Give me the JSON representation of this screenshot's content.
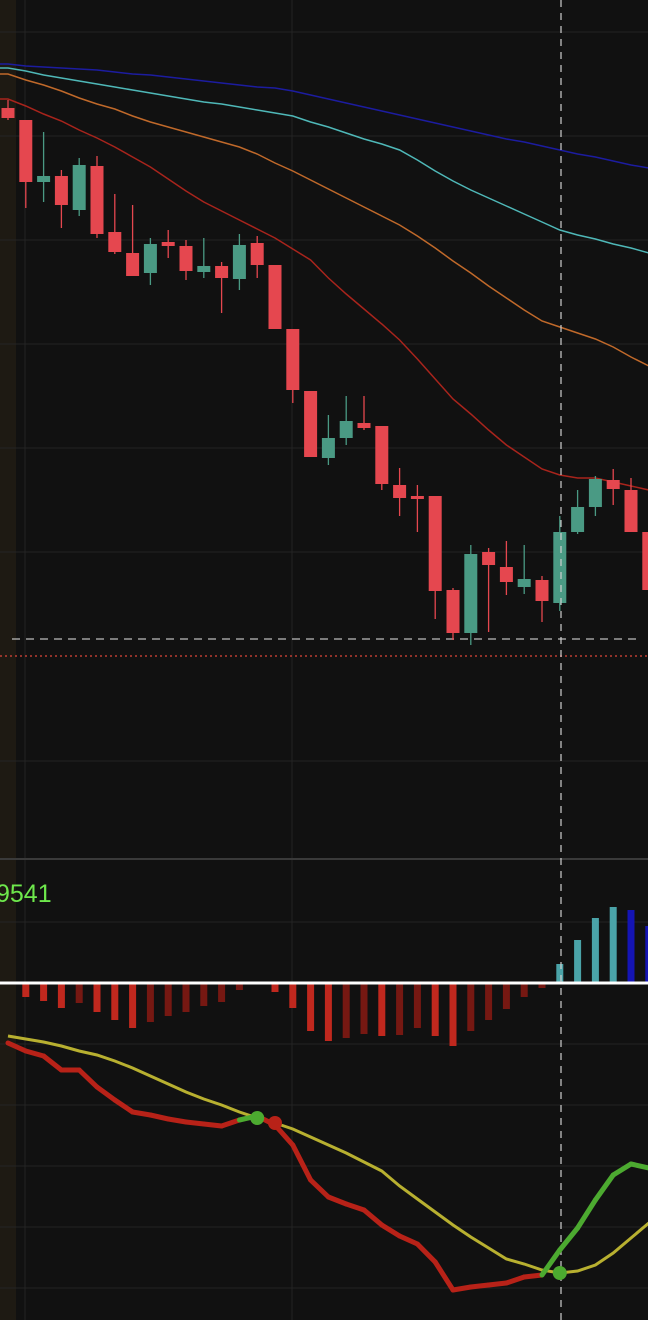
{
  "chart_data": [
    {
      "type": "candlestick",
      "ylim": [
        0,
        86
      ],
      "up_color": "#4a9a84",
      "down_color": "#e5474f",
      "open": [
        75.2,
        74.0,
        67.8,
        68.4,
        65.0,
        69.4,
        62.8,
        60.7,
        58.7,
        61.8,
        61.4,
        58.8,
        59.4,
        58.1,
        61.7,
        59.5,
        53.1,
        46.9,
        40.2,
        42.2,
        43.7,
        43.4,
        37.5,
        36.4,
        36.4,
        27.0,
        22.7,
        30.8,
        29.3,
        27.3,
        28.0,
        25.7,
        32.8,
        35.3,
        38.0,
        37.0,
        32.8
      ],
      "high": [
        76.0,
        74.0,
        72.8,
        69.0,
        70.2,
        70.4,
        66.6,
        65.5,
        62.2,
        63.0,
        62.0,
        62.2,
        59.8,
        62.6,
        62.4,
        59.5,
        53.1,
        46.9,
        44.5,
        46.4,
        46.4,
        43.4,
        39.2,
        37.5,
        36.4,
        27.2,
        31.5,
        31.2,
        31.9,
        31.5,
        28.4,
        34.4,
        37.0,
        38.4,
        39.1,
        38.2,
        32.8
      ],
      "low": [
        74.0,
        65.2,
        65.8,
        63.2,
        64.4,
        62.2,
        60.6,
        58.4,
        57.5,
        60.2,
        58.0,
        58.2,
        54.7,
        57.0,
        58.2,
        53.1,
        45.7,
        40.3,
        39.5,
        41.5,
        43.0,
        37.0,
        34.4,
        32.8,
        24.1,
        22.0,
        21.5,
        22.8,
        26.5,
        26.6,
        23.8,
        24.9,
        32.6,
        34.4,
        35.5,
        32.8,
        27.0
      ],
      "close": [
        74.2,
        67.8,
        68.4,
        65.5,
        69.5,
        62.6,
        60.8,
        58.4,
        61.6,
        61.4,
        58.9,
        59.4,
        58.2,
        61.5,
        59.5,
        53.1,
        47.0,
        40.3,
        42.2,
        43.9,
        43.2,
        37.6,
        36.2,
        36.1,
        26.9,
        22.7,
        30.6,
        29.5,
        27.8,
        28.1,
        25.9,
        32.8,
        35.3,
        38.1,
        37.1,
        32.8,
        27.0
      ],
      "moving_averages": [
        {
          "color": "#1c1ca0",
          "values": [
            79.6,
            79.4,
            79.3,
            79.2,
            79.1,
            79.0,
            78.8,
            78.6,
            78.5,
            78.3,
            78.1,
            77.9,
            77.7,
            77.5,
            77.3,
            77.2,
            76.9,
            76.5,
            76.1,
            75.7,
            75.3,
            74.9,
            74.5,
            74.1,
            73.7,
            73.3,
            72.9,
            72.5,
            72.1,
            71.8,
            71.4,
            71.0,
            70.6,
            70.3,
            69.9,
            69.5,
            69.2
          ]
        },
        {
          "color": "#4fb8b8",
          "values": [
            79.2,
            78.9,
            78.5,
            78.2,
            77.9,
            77.6,
            77.3,
            77.0,
            76.7,
            76.4,
            76.1,
            75.8,
            75.6,
            75.3,
            75.0,
            74.7,
            74.4,
            73.8,
            73.3,
            72.7,
            72.1,
            71.6,
            71.0,
            70.0,
            68.9,
            67.9,
            67.0,
            66.2,
            65.4,
            64.6,
            63.8,
            63.0,
            62.5,
            62.1,
            61.6,
            61.2,
            60.7
          ]
        },
        {
          "color": "#c0692a",
          "values": [
            78.6,
            78.0,
            77.5,
            76.9,
            76.2,
            75.6,
            75.1,
            74.4,
            73.8,
            73.3,
            72.8,
            72.3,
            71.8,
            71.3,
            70.6,
            69.7,
            68.9,
            68.0,
            67.1,
            66.2,
            65.3,
            64.4,
            63.5,
            62.4,
            61.2,
            59.9,
            58.7,
            57.4,
            56.2,
            55.0,
            53.9,
            53.3,
            52.7,
            52.1,
            51.3,
            50.3,
            49.4
          ]
        },
        {
          "color": "#a8241c",
          "values": [
            76.1,
            75.4,
            74.6,
            73.9,
            73.0,
            72.2,
            71.3,
            70.3,
            69.3,
            68.1,
            66.9,
            65.8,
            64.9,
            64.0,
            63.1,
            62.2,
            61.1,
            60.0,
            58.2,
            56.6,
            55.1,
            53.6,
            52.0,
            50.1,
            48.1,
            46.1,
            44.6,
            43.0,
            41.5,
            40.3,
            39.1,
            38.5,
            38.2,
            38.2,
            37.8,
            37.4,
            37.0
          ]
        }
      ],
      "levels": [
        22.1,
        20.4
      ]
    },
    {
      "type": "macd",
      "value_text": "9541",
      "hist_ylim": [
        -33.7,
        9.8
      ],
      "histogram": [
        null,
        -1.4,
        -1.8,
        -2.5,
        -2.0,
        -2.9,
        -3.7,
        -4.5,
        -3.9,
        -3.3,
        -2.9,
        -2.3,
        -1.9,
        -0.7,
        null,
        -0.9,
        -2.5,
        -4.8,
        -5.8,
        -5.5,
        -5.1,
        -5.3,
        -5.2,
        -4.5,
        -5.3,
        -6.3,
        -4.8,
        -3.7,
        -2.6,
        -1.4,
        -0.5,
        1.9,
        4.3,
        6.5,
        7.6,
        7.3,
        5.7
      ],
      "hist_colors": {
        "up_grow": "#4aa3a8",
        "up_shrink": "#1414b4",
        "down_grow": "#c0281e",
        "down_shrink": "#761812"
      },
      "ylim": [
        0,
        32
      ],
      "dif": [
        27.7,
        26.9,
        26.4,
        25.0,
        25.0,
        23.3,
        22.0,
        20.8,
        20.5,
        20.1,
        19.8,
        19.6,
        19.4,
        20.0,
        20.4,
        19.5,
        17.5,
        14.0,
        12.3,
        11.6,
        11.0,
        9.5,
        8.4,
        7.6,
        5.8,
        3.0,
        3.3,
        3.5,
        3.7,
        4.3,
        4.5,
        7.0,
        9.2,
        12.0,
        14.5,
        15.6,
        15.2
      ],
      "dea": [
        28.4,
        28.1,
        27.8,
        27.4,
        26.9,
        26.5,
        25.9,
        25.2,
        24.4,
        23.6,
        22.8,
        22.1,
        21.5,
        20.8,
        20.2,
        19.7,
        19.1,
        18.3,
        17.5,
        16.7,
        15.8,
        14.9,
        13.4,
        12.1,
        10.8,
        9.5,
        8.3,
        7.2,
        6.1,
        5.6,
        5.0,
        4.7,
        4.9,
        5.5,
        6.7,
        8.2,
        9.7
      ],
      "dif_colors": {
        "above": "#4caa30",
        "below": "#b82218"
      },
      "dea_color": "#b8b030"
    }
  ]
}
